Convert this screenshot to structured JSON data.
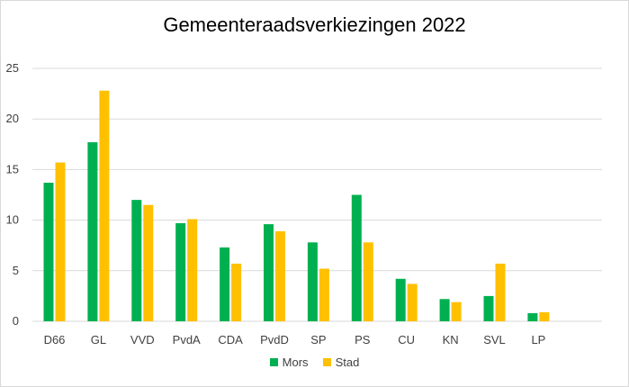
{
  "chart_data": {
    "type": "bar",
    "title": "Gemeenteraadsverkiezingen 2022",
    "xlabel": "",
    "ylabel": "",
    "categories": [
      "D66",
      "GL",
      "VVD",
      "PvdA",
      "CDA",
      "PvdD",
      "SP",
      "PS",
      "CU",
      "KN",
      "SVL",
      "LP"
    ],
    "series": [
      {
        "name": "Mors",
        "color": "#00b050",
        "values": [
          13.7,
          17.7,
          12.0,
          9.7,
          7.3,
          9.6,
          7.8,
          12.5,
          4.2,
          2.2,
          2.5,
          0.8
        ]
      },
      {
        "name": "Stad",
        "color": "#ffc000",
        "values": [
          15.7,
          22.8,
          11.5,
          10.1,
          5.7,
          8.9,
          5.2,
          7.8,
          3.7,
          1.9,
          5.7,
          0.9
        ]
      }
    ],
    "ylim": [
      0,
      25
    ],
    "yticks": [
      0,
      5,
      10,
      15,
      20,
      25
    ],
    "grid": true,
    "gridColor": "#d9d9d9",
    "legend": "bottom"
  }
}
